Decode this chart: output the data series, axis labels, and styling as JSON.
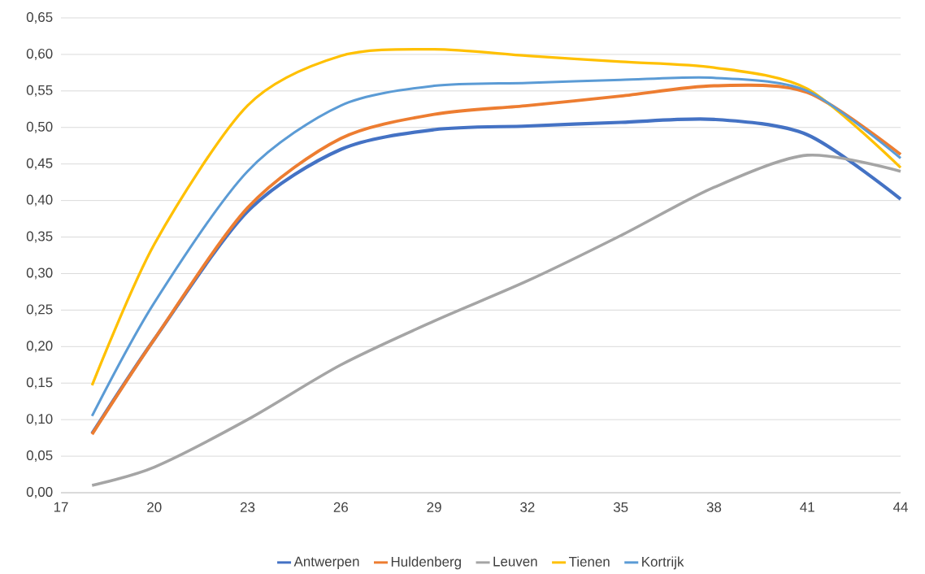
{
  "chart_data": {
    "type": "line",
    "x": [
      18,
      20,
      23,
      26,
      29,
      32,
      35,
      38,
      41,
      44
    ],
    "series": [
      {
        "name": "Antwerpen",
        "color": "#4472c4",
        "values": [
          0.081,
          0.21,
          0.385,
          0.47,
          0.497,
          0.502,
          0.507,
          0.511,
          0.49,
          0.402
        ]
      },
      {
        "name": "Huldenberg",
        "color": "#ed7d31",
        "values": [
          0.08,
          0.21,
          0.39,
          0.485,
          0.518,
          0.53,
          0.543,
          0.557,
          0.548,
          0.463
        ]
      },
      {
        "name": "Leuven",
        "color": "#a5a5a5",
        "values": [
          0.01,
          0.035,
          0.1,
          0.175,
          0.235,
          0.29,
          0.352,
          0.418,
          0.462,
          0.44
        ]
      },
      {
        "name": "Tienen",
        "color": "#ffc000",
        "values": [
          0.147,
          0.34,
          0.53,
          0.598,
          0.607,
          0.598,
          0.59,
          0.582,
          0.553,
          0.445
        ]
      },
      {
        "name": "Kortrijk",
        "color": "#5b9bd5",
        "values": [
          0.105,
          0.26,
          0.44,
          0.53,
          0.557,
          0.561,
          0.565,
          0.568,
          0.55,
          0.458
        ]
      }
    ],
    "xlim": [
      17,
      44
    ],
    "xticks": [
      17,
      20,
      23,
      26,
      29,
      32,
      35,
      38,
      41,
      44
    ],
    "ylim": [
      0,
      0.65
    ],
    "yticks": [
      {
        "value": 0,
        "label": "0,00"
      },
      {
        "value": 0.05,
        "label": "0,05"
      },
      {
        "value": 0.1,
        "label": "0,10"
      },
      {
        "value": 0.15,
        "label": "0,15"
      },
      {
        "value": 0.2,
        "label": "0,20"
      },
      {
        "value": 0.25,
        "label": "0,25"
      },
      {
        "value": 0.3,
        "label": "0,30"
      },
      {
        "value": 0.35,
        "label": "0,35"
      },
      {
        "value": 0.4,
        "label": "0,40"
      },
      {
        "value": 0.45,
        "label": "0,45"
      },
      {
        "value": 0.5,
        "label": "0,50"
      },
      {
        "value": 0.55,
        "label": "0,55"
      },
      {
        "value": 0.6,
        "label": "0,60"
      },
      {
        "value": 0.65,
        "label": "0,65"
      }
    ],
    "grid": "y",
    "legend": "bottom"
  }
}
